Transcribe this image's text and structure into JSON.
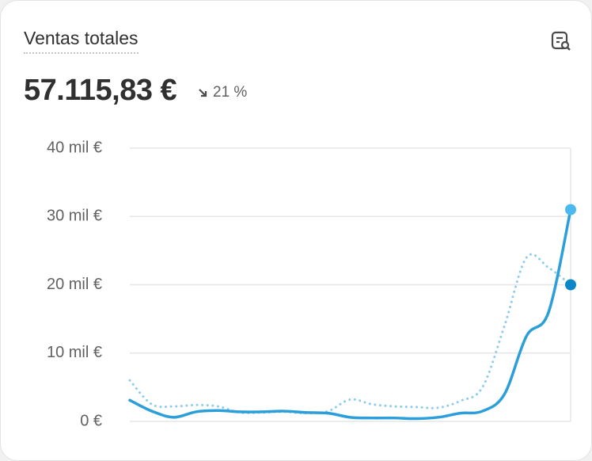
{
  "chart_data": {
    "type": "line",
    "title": "Ventas totales",
    "total": "57.115,83 €",
    "change": "21 %",
    "categories": [
      null,
      null,
      null,
      null,
      null,
      null,
      null,
      null,
      null,
      null,
      null,
      null,
      null,
      null,
      null,
      null,
      null,
      null,
      null,
      null,
      null
    ],
    "series": [
      {
        "color": "#2c9fda",
        "style": "solid",
        "values": [
          3100,
          1500,
          600,
          1400,
          1600,
          1400,
          1400,
          1500,
          1300,
          1200,
          600,
          500,
          500,
          400,
          600,
          1200,
          1500,
          4000,
          12500,
          16000,
          31000
        ]
      },
      {
        "color": "#8fcdeb",
        "style": "dotted",
        "values": [
          6000,
          2500,
          2200,
          2400,
          2200,
          1300,
          1300,
          1400,
          1200,
          1500,
          3200,
          2500,
          2200,
          2100,
          2000,
          3000,
          5000,
          14000,
          24000,
          22500,
          20000
        ]
      }
    ],
    "end_colors": [
      "#4cb9ee",
      "#0b86c9"
    ],
    "ylim": [
      0,
      40000
    ],
    "yticks": [
      {
        "value": 0,
        "label": "0 €"
      },
      {
        "value": 10000,
        "label": "10 mil €"
      },
      {
        "value": 20000,
        "label": "20 mil €"
      },
      {
        "value": 30000,
        "label": "30 mil €"
      },
      {
        "value": 40000,
        "label": "40 mil €"
      }
    ],
    "grid": true
  }
}
